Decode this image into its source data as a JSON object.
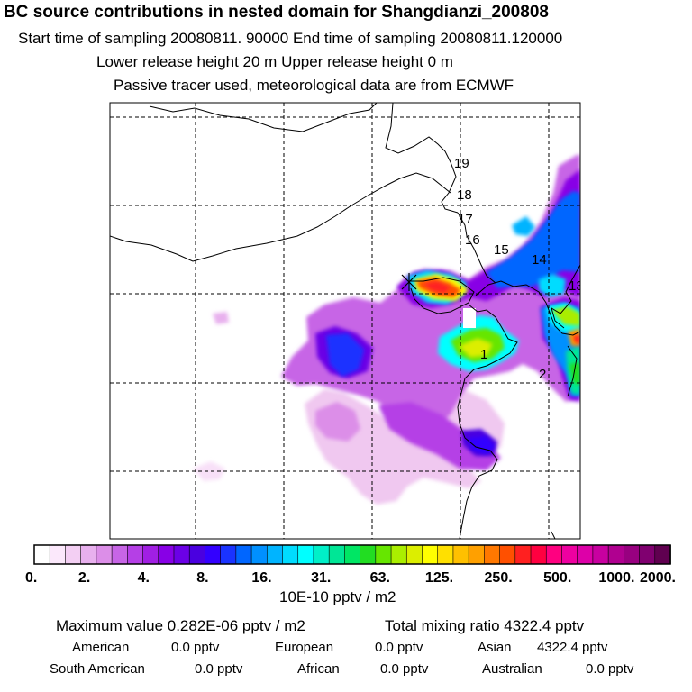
{
  "title": "BC  source contributions in nested domain for Shangdianzi_200808",
  "header": {
    "sampling": "Start time of sampling 20080811. 90000     End time of sampling 20080811.120000",
    "release": "Lower release height   20 m          Upper release height    0 m",
    "tracer": "Passive tracer used, meteorological data are from ECMWF"
  },
  "chart_data": {
    "type": "heatmap",
    "colorbar": {
      "tick_labels": [
        "0.",
        "2.",
        "4.",
        "8.",
        "16.",
        "31.",
        "63.",
        "125.",
        "250.",
        "500.",
        "1000.",
        "2000."
      ],
      "unit": "10E-10 pptv / m2",
      "colors": [
        "#ffffff",
        "#fbe8fb",
        "#f3cff3",
        "#e8b0ee",
        "#dc8ee8",
        "#c765e6",
        "#b53fe6",
        "#a11fe3",
        "#8800e6",
        "#6b00e6",
        "#4a00e0",
        "#3300ff",
        "#1a33ff",
        "#0066ff",
        "#0090ff",
        "#00b4ff",
        "#00dcff",
        "#00ffff",
        "#00f0c8",
        "#00e696",
        "#00e664",
        "#22dd22",
        "#66e600",
        "#aaee00",
        "#dcee00",
        "#ffff00",
        "#ffe000",
        "#ffc000",
        "#ffa000",
        "#ff7800",
        "#ff5000",
        "#ff2020",
        "#ff0040",
        "#ff0080",
        "#ee00a0",
        "#dd00a8",
        "#c800a0",
        "#b00090",
        "#980080",
        "#800070",
        "#600050"
      ]
    },
    "trajectory_labels": [
      "1",
      "2",
      "13",
      "14",
      "15",
      "16",
      "17",
      "18",
      "19"
    ],
    "stats": {
      "maximum": "Maximum value  0.282E-06 pptv / m2",
      "total": "Total mixing ratio     4322.4 pptv"
    },
    "regions": [
      {
        "name": "American",
        "value": "0.0 pptv"
      },
      {
        "name": "European",
        "value": "0.0 pptv"
      },
      {
        "name": "Asian",
        "value": "4322.4 pptv"
      },
      {
        "name": "South American",
        "value": "0.0 pptv"
      },
      {
        "name": "African",
        "value": "0.0 pptv"
      },
      {
        "name": "Australian",
        "value": "0.0 pptv"
      }
    ],
    "grid": true
  }
}
